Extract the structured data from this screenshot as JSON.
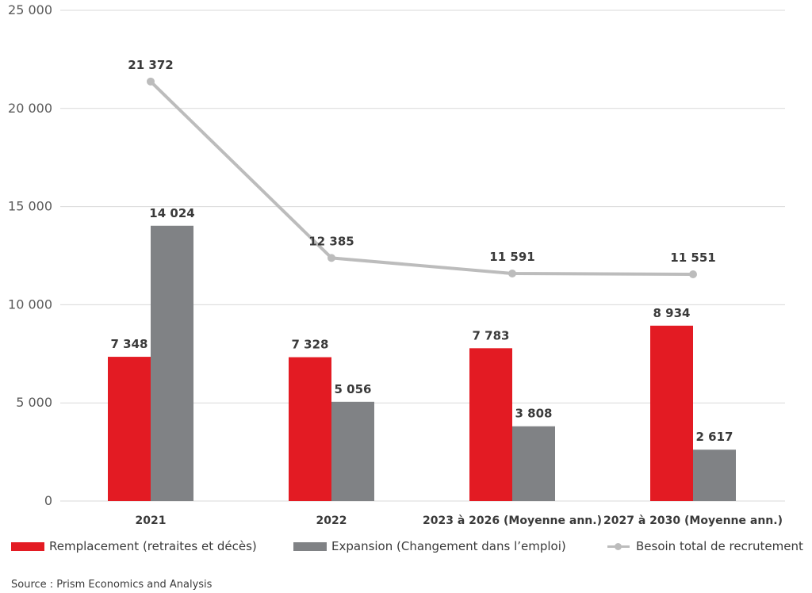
{
  "chart_data": {
    "type": "bar",
    "categories": [
      "2021",
      "2022",
      "2023 à 2026 (Moyenne ann.)",
      "2027 à 2030 (Moyenne ann.)"
    ],
    "series": [
      {
        "name": "Remplacement (retraites et décès)",
        "type": "bar",
        "color": "#e31b23",
        "values": [
          7348,
          7328,
          7783,
          8934
        ],
        "labels": [
          "7 348",
          "7 328",
          "7 783",
          "8 934"
        ]
      },
      {
        "name": "Expansion (Changement dans l’emploi)",
        "type": "bar",
        "color": "#808285",
        "values": [
          14024,
          5056,
          3808,
          2617
        ],
        "labels": [
          "14 024",
          "5 056",
          "3 808",
          "2 617"
        ]
      },
      {
        "name": "Besoin total de recrutement",
        "type": "line",
        "color": "#bcbcbc",
        "values": [
          21372,
          12385,
          11591,
          11551
        ],
        "labels": [
          "21 372",
          "12 385",
          "11 591",
          "11 551"
        ]
      }
    ],
    "yticks": [
      "0",
      "5 000",
      "10 000",
      "15 000",
      "20 000",
      "25 000"
    ],
    "ylim": [
      0,
      25000
    ],
    "grid": true,
    "legend_position": "bottom"
  },
  "source": "Source : Prism Economics and Analysis"
}
